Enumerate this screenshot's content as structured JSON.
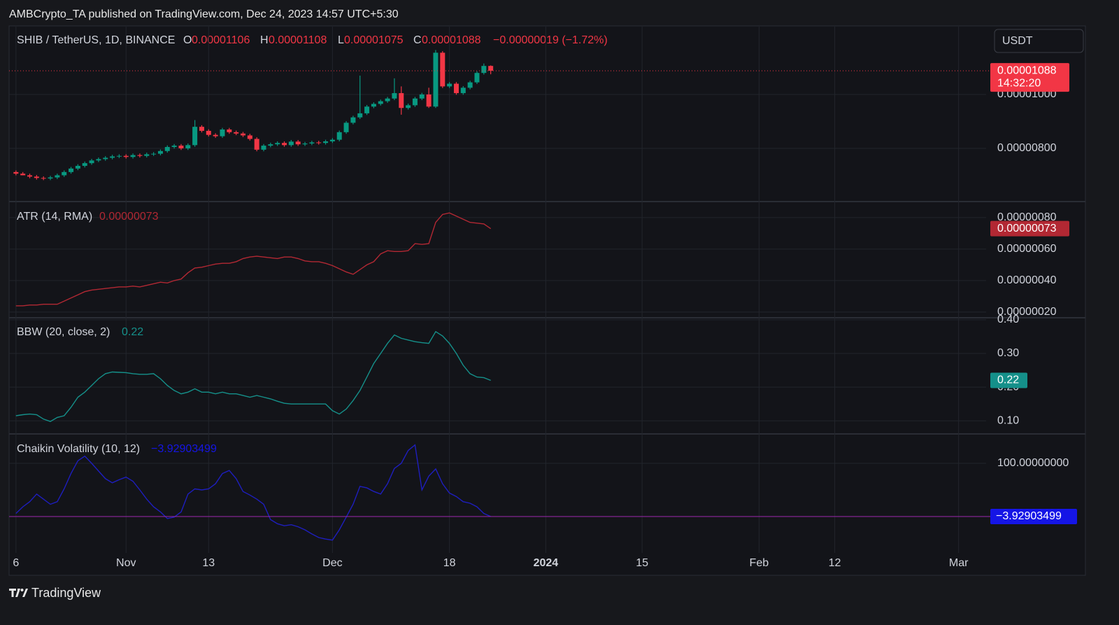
{
  "header": {
    "published": "AMBCrypto_TA published on TradingView.com, Dec 24, 2023 14:57 UTC+5:30",
    "logo": "TradingView",
    "currency": "USDT"
  },
  "chart_data": {
    "type": "candlestick",
    "title": "SHIB / TetherUS, 1D, BINANCE",
    "ohlc_letters": [
      "O",
      "H",
      "L",
      "C"
    ],
    "last_labels": [
      "0.00001106",
      "0.00001108",
      "0.00001075",
      "0.00001088"
    ],
    "change_label": "−0.00000019 (−1.72%)",
    "last_price_label": "0.00001088",
    "countdown": "14:32:20",
    "up_color": "#089981",
    "down_color": "#f23645",
    "grid": true,
    "x": [
      "2023-10-16",
      "2023-10-17",
      "2023-10-18",
      "2023-10-19",
      "2023-10-20",
      "2023-10-21",
      "2023-10-22",
      "2023-10-23",
      "2023-10-24",
      "2023-10-25",
      "2023-10-26",
      "2023-10-27",
      "2023-10-28",
      "2023-10-29",
      "2023-10-30",
      "2023-10-31",
      "2023-11-01",
      "2023-11-02",
      "2023-11-03",
      "2023-11-04",
      "2023-11-05",
      "2023-11-06",
      "2023-11-07",
      "2023-11-08",
      "2023-11-09",
      "2023-11-10",
      "2023-11-11",
      "2023-11-12",
      "2023-11-13",
      "2023-11-14",
      "2023-11-15",
      "2023-11-16",
      "2023-11-17",
      "2023-11-18",
      "2023-11-19",
      "2023-11-20",
      "2023-11-21",
      "2023-11-22",
      "2023-11-23",
      "2023-11-24",
      "2023-11-25",
      "2023-11-26",
      "2023-11-27",
      "2023-11-28",
      "2023-11-29",
      "2023-11-30",
      "2023-12-01",
      "2023-12-02",
      "2023-12-03",
      "2023-12-04",
      "2023-12-05",
      "2023-12-06",
      "2023-12-07",
      "2023-12-08",
      "2023-12-09",
      "2023-12-10",
      "2023-12-11",
      "2023-12-12",
      "2023-12-13",
      "2023-12-14",
      "2023-12-15",
      "2023-12-16",
      "2023-12-17",
      "2023-12-18",
      "2023-12-19",
      "2023-12-20",
      "2023-12-21",
      "2023-12-22",
      "2023-12-23",
      "2023-12-24"
    ],
    "open": [
      7.12e-06,
      7.06e-06,
      7e-06,
      6.95e-06,
      6.9e-06,
      6.88e-06,
      6.92e-06,
      7e-06,
      7.12e-06,
      7.25e-06,
      7.35e-06,
      7.45e-06,
      7.55e-06,
      7.6e-06,
      7.65e-06,
      7.7e-06,
      7.72e-06,
      7.68e-06,
      7.75e-06,
      7.72e-06,
      7.78e-06,
      7.8e-06,
      7.9e-06,
      8.05e-06,
      8.1e-06,
      8e-06,
      8.12e-06,
      8.8e-06,
      8.65e-06,
      8.5e-06,
      8.45e-06,
      8.7e-06,
      8.6e-06,
      8.55e-06,
      8.48e-06,
      8.35e-06,
      7.95e-06,
      8.1e-06,
      8.15e-06,
      8.2e-06,
      8.12e-06,
      8.25e-06,
      8.15e-06,
      8.18e-06,
      8.22e-06,
      8.2e-06,
      8.26e-06,
      8.32e-06,
      8.6e-06,
      8.95e-06,
      9.15e-06,
      9.3e-06,
      9.55e-06,
      9.65e-06,
      9.75e-06,
      9.85e-06,
      1.005e-05,
      9.5e-06,
      9.6e-06,
      9.85e-06,
      1e-05,
      9.55e-06,
      1.155e-05,
      1.03e-05,
      1.04e-05,
      1.005e-05,
      1.025e-05,
      1.045e-05,
      1.08e-05,
      1.106e-05
    ],
    "high": [
      7.18e-06,
      7.12e-06,
      7.06e-06,
      7.01e-06,
      6.96e-06,
      6.98e-06,
      7.06e-06,
      7.18e-06,
      7.31e-06,
      7.41e-06,
      7.51e-06,
      7.61e-06,
      7.66e-06,
      7.71e-06,
      7.76e-06,
      7.78e-06,
      7.78e-06,
      7.81e-06,
      7.81e-06,
      7.84e-06,
      7.86e-06,
      7.96e-06,
      8.11e-06,
      8.16e-06,
      8.16e-06,
      8.18e-06,
      9.05e-06,
      8.86e-06,
      8.71e-06,
      8.56e-06,
      8.76e-06,
      8.76e-06,
      8.66e-06,
      8.61e-06,
      8.54e-06,
      8.41e-06,
      8.16e-06,
      8.21e-06,
      8.26e-06,
      8.26e-06,
      8.31e-06,
      8.31e-06,
      8.24e-06,
      8.28e-06,
      8.28e-06,
      8.32e-06,
      8.38e-06,
      8.66e-06,
      9.01e-06,
      9.21e-06,
      1.07e-05,
      9.61e-06,
      9.71e-06,
      9.81e-06,
      9.91e-06,
      1.06e-05,
      1.03e-05,
      9.66e-06,
      9.91e-06,
      1.006e-05,
      1.025e-05,
      1.165e-05,
      1.161e-05,
      1.046e-05,
      1.046e-05,
      1.031e-05,
      1.051e-05,
      1.086e-05,
      1.115e-05,
      1.108e-05
    ],
    "low": [
      7e-06,
      7e-06,
      6.89e-06,
      6.84e-06,
      6.82e-06,
      6.82e-06,
      6.86e-06,
      6.94e-06,
      7.06e-06,
      7.19e-06,
      7.29e-06,
      7.39e-06,
      7.49e-06,
      7.54e-06,
      7.59e-06,
      7.64e-06,
      7.62e-06,
      7.62e-06,
      7.66e-06,
      7.66e-06,
      7.72e-06,
      7.74e-06,
      7.84e-06,
      7.99e-06,
      7.94e-06,
      7.94e-06,
      8.06e-06,
      8.59e-06,
      8.44e-06,
      8.39e-06,
      8.39e-06,
      8.54e-06,
      8.49e-06,
      8.42e-06,
      8.29e-06,
      7.89e-06,
      7.89e-06,
      8.04e-06,
      8.09e-06,
      8.06e-06,
      8.06e-06,
      8.09e-06,
      8.09e-06,
      8.12e-06,
      8.14e-06,
      8.14e-06,
      8.2e-06,
      8.26e-06,
      8.54e-06,
      8.89e-06,
      9.09e-06,
      9.24e-06,
      9.49e-06,
      9.59e-06,
      9.69e-06,
      9.79e-06,
      9.25e-06,
      9.44e-06,
      9.54e-06,
      9.79e-06,
      9.5e-06,
      9.5e-06,
      1.024e-05,
      1.024e-05,
      9.99e-06,
      9.99e-06,
      1.019e-05,
      1.039e-05,
      1.074e-05,
      1.075e-05
    ],
    "close": [
      7.06e-06,
      7e-06,
      6.95e-06,
      6.9e-06,
      6.88e-06,
      6.92e-06,
      7e-06,
      7.12e-06,
      7.25e-06,
      7.35e-06,
      7.45e-06,
      7.55e-06,
      7.6e-06,
      7.65e-06,
      7.7e-06,
      7.72e-06,
      7.68e-06,
      7.75e-06,
      7.72e-06,
      7.78e-06,
      7.8e-06,
      7.9e-06,
      8.05e-06,
      8.1e-06,
      8e-06,
      8.12e-06,
      8.8e-06,
      8.65e-06,
      8.5e-06,
      8.45e-06,
      8.7e-06,
      8.6e-06,
      8.55e-06,
      8.48e-06,
      8.35e-06,
      7.95e-06,
      8.1e-06,
      8.15e-06,
      8.2e-06,
      8.12e-06,
      8.25e-06,
      8.15e-06,
      8.18e-06,
      8.22e-06,
      8.2e-06,
      8.26e-06,
      8.32e-06,
      8.6e-06,
      8.95e-06,
      9.15e-06,
      9.3e-06,
      9.55e-06,
      9.65e-06,
      9.75e-06,
      9.85e-06,
      1.005e-05,
      9.5e-06,
      9.6e-06,
      9.85e-06,
      1e-05,
      9.55e-06,
      1.155e-05,
      1.03e-05,
      1.04e-05,
      1.005e-05,
      1.025e-05,
      1.045e-05,
      1.08e-05,
      1.106e-05,
      1.088e-05
    ],
    "xlim": [
      "2023-10-15",
      "2024-03-05"
    ],
    "xticks": [
      {
        "value": "2023-10-16",
        "label": "6"
      },
      {
        "value": "2023-11-01",
        "label": "Nov"
      },
      {
        "value": "2023-11-13",
        "label": "13"
      },
      {
        "value": "2023-12-01",
        "label": "Dec"
      },
      {
        "value": "2023-12-18",
        "label": "18"
      },
      {
        "value": "2024-01-01",
        "label": "2024"
      },
      {
        "value": "2024-01-15",
        "label": "15"
      },
      {
        "value": "2024-02-01",
        "label": "Feb"
      },
      {
        "value": "2024-02-12",
        "label": "12"
      },
      {
        "value": "2024-03-01",
        "label": "Mar"
      }
    ],
    "ylim": [
      6.05e-06,
      1.252e-05
    ],
    "yticks": [
      {
        "value": 8e-06,
        "label": "0.00000800"
      },
      {
        "value": 1e-05,
        "label": "0.00001000"
      }
    ],
    "indicators": [
      {
        "type": "line",
        "name": "ATR (14, RMA)",
        "color": "#b22833",
        "ylim": [
          1.73e-07,
          8.93e-07
        ],
        "yticks": [
          {
            "value": 2e-07,
            "label": "0.00000020"
          },
          {
            "value": 4e-07,
            "label": "0.00000040"
          },
          {
            "value": 6e-07,
            "label": "0.00000060"
          },
          {
            "value": 8e-07,
            "label": "0.00000080"
          }
        ],
        "values": [
          2.4e-07,
          2.4e-07,
          2.45e-07,
          2.45e-07,
          2.5e-07,
          2.5e-07,
          2.5e-07,
          2.7e-07,
          2.9e-07,
          3.1e-07,
          3.3e-07,
          3.4e-07,
          3.45e-07,
          3.5e-07,
          3.55e-07,
          3.6e-07,
          3.6e-07,
          3.65e-07,
          3.6e-07,
          3.7e-07,
          3.8e-07,
          3.9e-07,
          3.85e-07,
          4e-07,
          4.1e-07,
          4.5e-07,
          4.8e-07,
          4.85e-07,
          4.95e-07,
          5.05e-07,
          5.1e-07,
          5.1e-07,
          5.2e-07,
          5.4e-07,
          5.5e-07,
          5.55e-07,
          5.5e-07,
          5.45e-07,
          5.4e-07,
          5.5e-07,
          5.5e-07,
          5.4e-07,
          5.25e-07,
          5.2e-07,
          5.2e-07,
          5.1e-07,
          4.95e-07,
          4.75e-07,
          4.55e-07,
          4.4e-07,
          4.7e-07,
          5e-07,
          5.2e-07,
          5.7e-07,
          5.9e-07,
          5.85e-07,
          5.85e-07,
          5.9e-07,
          6.35e-07,
          6.3e-07,
          6.35e-07,
          7.7e-07,
          8.2e-07,
          8.3e-07,
          8.1e-07,
          7.9e-07,
          7.7e-07,
          7.65e-07,
          7.6e-07,
          7.3e-07
        ],
        "value_labels": [
          null,
          null,
          null,
          null,
          null,
          null,
          null,
          null,
          null,
          null,
          null,
          null,
          null,
          null,
          null,
          null,
          null,
          null,
          null,
          null,
          null,
          null,
          null,
          null,
          null,
          null,
          null,
          null,
          null,
          null,
          null,
          null,
          null,
          null,
          null,
          null,
          null,
          null,
          null,
          null,
          null,
          null,
          null,
          null,
          null,
          null,
          null,
          null,
          null,
          null,
          null,
          null,
          null,
          null,
          null,
          null,
          null,
          null,
          null,
          null,
          null,
          null,
          null,
          null,
          null,
          null,
          null,
          null,
          null,
          "0.00000073"
        ]
      },
      {
        "type": "line",
        "name": "BBW (20, close, 2)",
        "color": "#15908a",
        "ylim": [
          0.063,
          0.404
        ],
        "yticks": [
          {
            "value": 0.1,
            "label": "0.10"
          },
          {
            "value": 0.2,
            "label": "0.20"
          },
          {
            "value": 0.3,
            "label": "0.30"
          },
          {
            "value": 0.4,
            "label": "0.40"
          }
        ],
        "values": [
          0.115,
          0.118,
          0.12,
          0.118,
          0.105,
          0.098,
          0.11,
          0.115,
          0.14,
          0.17,
          0.185,
          0.205,
          0.225,
          0.24,
          0.245,
          0.244,
          0.243,
          0.24,
          0.238,
          0.238,
          0.24,
          0.225,
          0.205,
          0.19,
          0.18,
          0.185,
          0.195,
          0.185,
          0.185,
          0.18,
          0.185,
          0.18,
          0.18,
          0.175,
          0.17,
          0.175,
          0.17,
          0.165,
          0.158,
          0.152,
          0.15,
          0.15,
          0.15,
          0.15,
          0.15,
          0.15,
          0.13,
          0.12,
          0.135,
          0.16,
          0.19,
          0.23,
          0.27,
          0.3,
          0.33,
          0.355,
          0.345,
          0.34,
          0.335,
          0.332,
          0.33,
          0.365,
          0.352,
          0.33,
          0.3,
          0.265,
          0.24,
          0.23,
          0.228,
          0.22
        ],
        "value_labels": [
          null,
          null,
          null,
          null,
          null,
          null,
          null,
          null,
          null,
          null,
          null,
          null,
          null,
          null,
          null,
          null,
          null,
          null,
          null,
          null,
          null,
          null,
          null,
          null,
          null,
          null,
          null,
          null,
          null,
          null,
          null,
          null,
          null,
          null,
          null,
          null,
          null,
          null,
          null,
          null,
          null,
          null,
          null,
          null,
          null,
          null,
          null,
          null,
          null,
          null,
          null,
          null,
          null,
          null,
          null,
          null,
          null,
          null,
          null,
          null,
          null,
          null,
          null,
          null,
          null,
          null,
          null,
          null,
          null,
          "0.22"
        ]
      },
      {
        "type": "line",
        "name": "Chaikin Volatility (10, 12)",
        "color": "#1e1ebe",
        "label_color": "#1515e6",
        "ylim": [
          -75.1,
          154.7
        ],
        "yticks": [
          {
            "value": 100,
            "label": "100.00000000"
          }
        ],
        "values": [
          2,
          15,
          25,
          40,
          30,
          20,
          25,
          50,
          80,
          105,
          114,
          100,
          85,
          70,
          62,
          68,
          73,
          65,
          48,
          30,
          15,
          5,
          -8,
          -5,
          5,
          40,
          50,
          48,
          50,
          60,
          80,
          86,
          70,
          45,
          38,
          30,
          20,
          -10,
          -18,
          -22,
          -20,
          -24,
          -30,
          -38,
          -45,
          -48,
          -50,
          -30,
          -5,
          20,
          55,
          52,
          45,
          40,
          60,
          90,
          100,
          125,
          136,
          48,
          75,
          89,
          60,
          42,
          35,
          25,
          22,
          15,
          2,
          -3.92903499
        ],
        "value_labels": [
          null,
          null,
          null,
          null,
          null,
          null,
          null,
          null,
          null,
          null,
          null,
          null,
          null,
          null,
          null,
          null,
          null,
          null,
          null,
          null,
          null,
          null,
          null,
          null,
          null,
          null,
          null,
          null,
          null,
          null,
          null,
          null,
          null,
          null,
          null,
          null,
          null,
          null,
          null,
          null,
          null,
          null,
          null,
          null,
          null,
          null,
          null,
          null,
          null,
          null,
          null,
          null,
          null,
          null,
          null,
          null,
          null,
          null,
          null,
          null,
          null,
          null,
          null,
          null,
          null,
          null,
          null,
          null,
          null,
          "−3.92903499"
        ]
      }
    ]
  }
}
